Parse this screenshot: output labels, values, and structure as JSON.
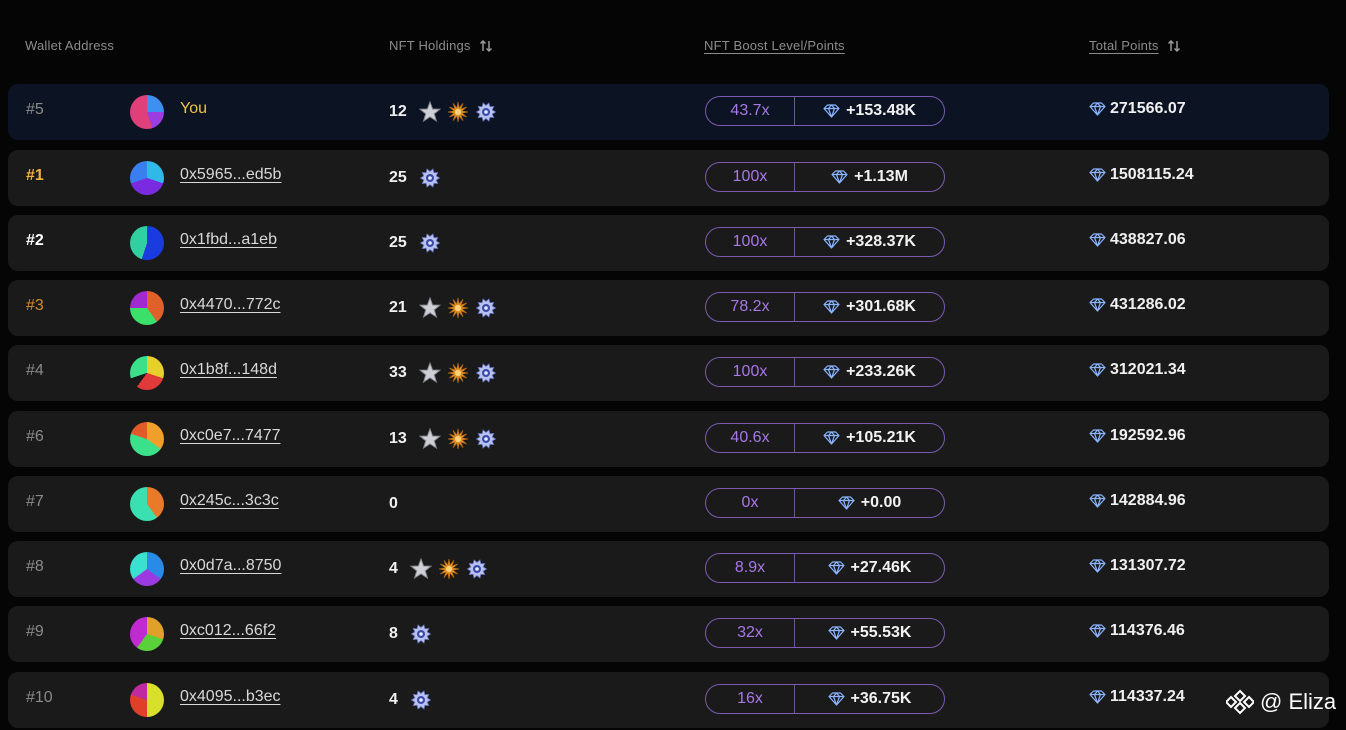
{
  "header": {
    "wallet_address": "Wallet Address",
    "nft_holdings": "NFT Holdings",
    "nft_boost": "NFT Boost Level/Points",
    "total_points": "Total Points"
  },
  "rows": [
    {
      "rank": "#5",
      "address": "You",
      "holdings": "12",
      "nfts": [
        "silver-star",
        "gold-burst",
        "blue-badge"
      ],
      "boost_level": "43.7x",
      "boost_points": "+153.48K",
      "total": "271566.07"
    },
    {
      "rank": "#1",
      "address": "0x5965...ed5b",
      "holdings": "25",
      "nfts": [
        "blue-badge"
      ],
      "boost_level": "100x",
      "boost_points": "+1.13M",
      "total": "1508115.24"
    },
    {
      "rank": "#2",
      "address": "0x1fbd...a1eb",
      "holdings": "25",
      "nfts": [
        "blue-badge"
      ],
      "boost_level": "100x",
      "boost_points": "+328.37K",
      "total": "438827.06"
    },
    {
      "rank": "#3",
      "address": "0x4470...772c",
      "holdings": "21",
      "nfts": [
        "silver-star",
        "gold-burst",
        "blue-badge"
      ],
      "boost_level": "78.2x",
      "boost_points": "+301.68K",
      "total": "431286.02"
    },
    {
      "rank": "#4",
      "address": "0x1b8f...148d",
      "holdings": "33",
      "nfts": [
        "silver-star",
        "gold-burst",
        "blue-badge"
      ],
      "boost_level": "100x",
      "boost_points": "+233.26K",
      "total": "312021.34"
    },
    {
      "rank": "#6",
      "address": "0xc0e7...7477",
      "holdings": "13",
      "nfts": [
        "silver-star",
        "gold-burst",
        "blue-badge"
      ],
      "boost_level": "40.6x",
      "boost_points": "+105.21K",
      "total": "192592.96"
    },
    {
      "rank": "#7",
      "address": "0x245c...3c3c",
      "holdings": "0",
      "nfts": [],
      "boost_level": "0x",
      "boost_points": "+0.00",
      "total": "142884.96"
    },
    {
      "rank": "#8",
      "address": "0x0d7a...8750",
      "holdings": "4",
      "nfts": [
        "silver-star",
        "gold-burst",
        "blue-badge"
      ],
      "boost_level": "8.9x",
      "boost_points": "+27.46K",
      "total": "131307.72"
    },
    {
      "rank": "#9",
      "address": "0xc012...66f2",
      "holdings": "8",
      "nfts": [
        "blue-badge"
      ],
      "boost_level": "32x",
      "boost_points": "+55.53K",
      "total": "114376.46"
    },
    {
      "rank": "#10",
      "address": "0x4095...b3ec",
      "holdings": "4",
      "nfts": [
        "blue-badge"
      ],
      "boost_level": "16x",
      "boost_points": "+36.75K",
      "total": "114337.24"
    }
  ],
  "watermark": {
    "text": "@ Eliza"
  },
  "colors": {
    "background": "#050505",
    "row_bg": "#1a1a1a",
    "you_row_bg": "#0c1424",
    "boost_border": "#7a5bb0",
    "boost_level": "#a877e8",
    "rank_gold": "#f1b33c",
    "rank_bronze": "#d98b28"
  }
}
